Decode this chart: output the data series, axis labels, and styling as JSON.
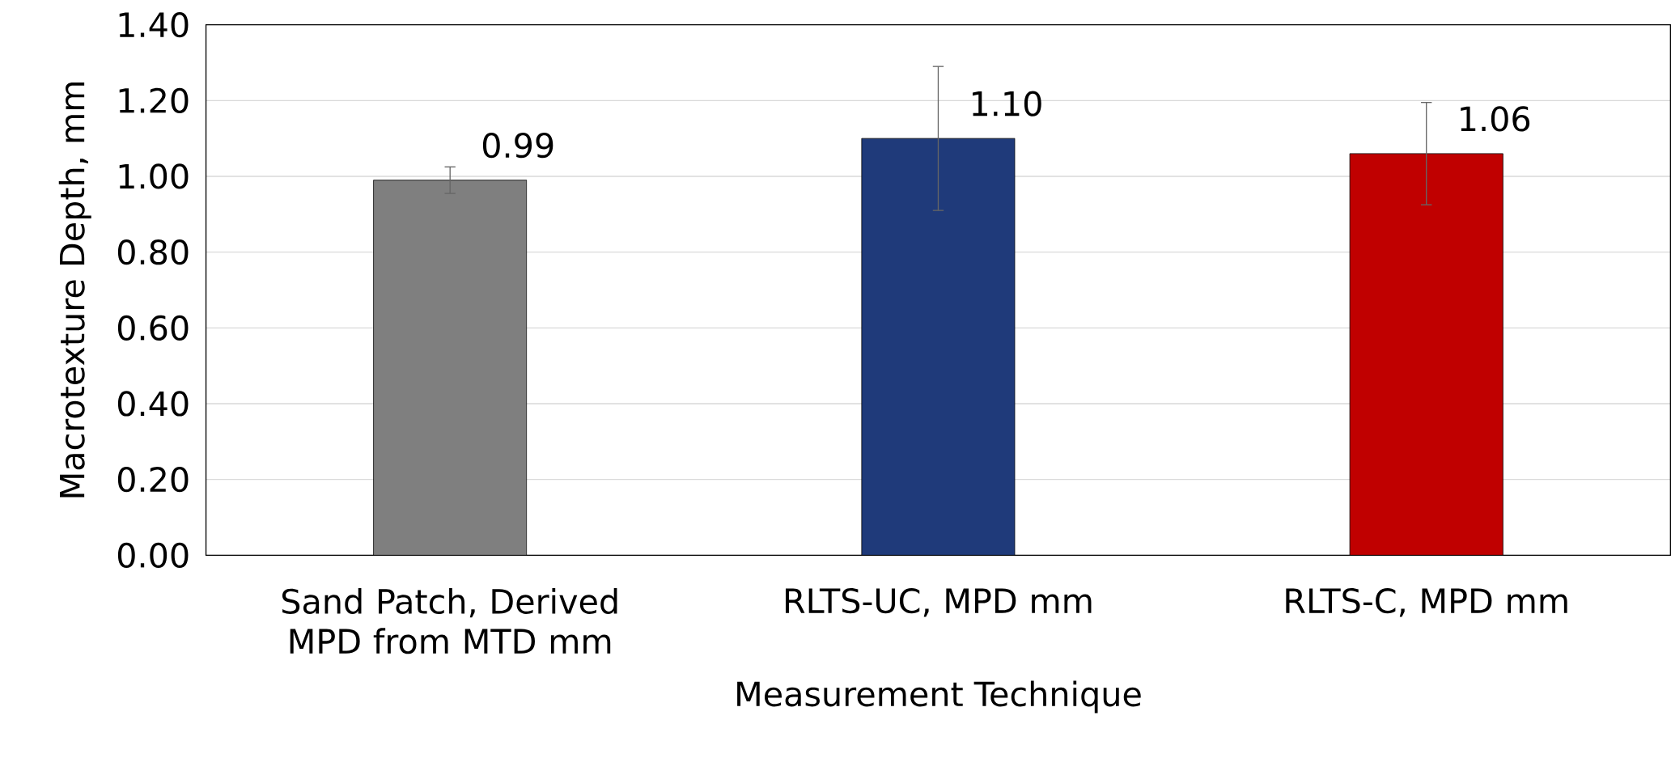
{
  "chart_data": {
    "type": "bar",
    "xlabel": "Measurement Technique",
    "ylabel": "Macrotexture Depth, mm",
    "categories": [
      "Sand Patch, Derived MPD from MTD mm",
      "RLTS-UC, MPD mm",
      "RLTS-C, MPD mm"
    ],
    "values": [
      0.99,
      1.1,
      1.06
    ],
    "value_labels": [
      "0.99",
      "1.10",
      "1.06"
    ],
    "errors": [
      0.035,
      0.19,
      0.135
    ],
    "colors": [
      "#7f7f7f",
      "#1f3a7a",
      "#c00000"
    ],
    "ylim": [
      0,
      1.4
    ],
    "yticks": [
      {
        "value": 0,
        "label": "0.00"
      },
      {
        "value": 0.2,
        "label": "0.20"
      },
      {
        "value": 0.4,
        "label": "0.40"
      },
      {
        "value": 0.6,
        "label": "0.60"
      },
      {
        "value": 0.8,
        "label": "0.80"
      },
      {
        "value": 1.0,
        "label": "1.00"
      },
      {
        "value": 1.2,
        "label": "1.20"
      },
      {
        "value": 1.4,
        "label": "1.40"
      }
    ],
    "grid": "y"
  }
}
